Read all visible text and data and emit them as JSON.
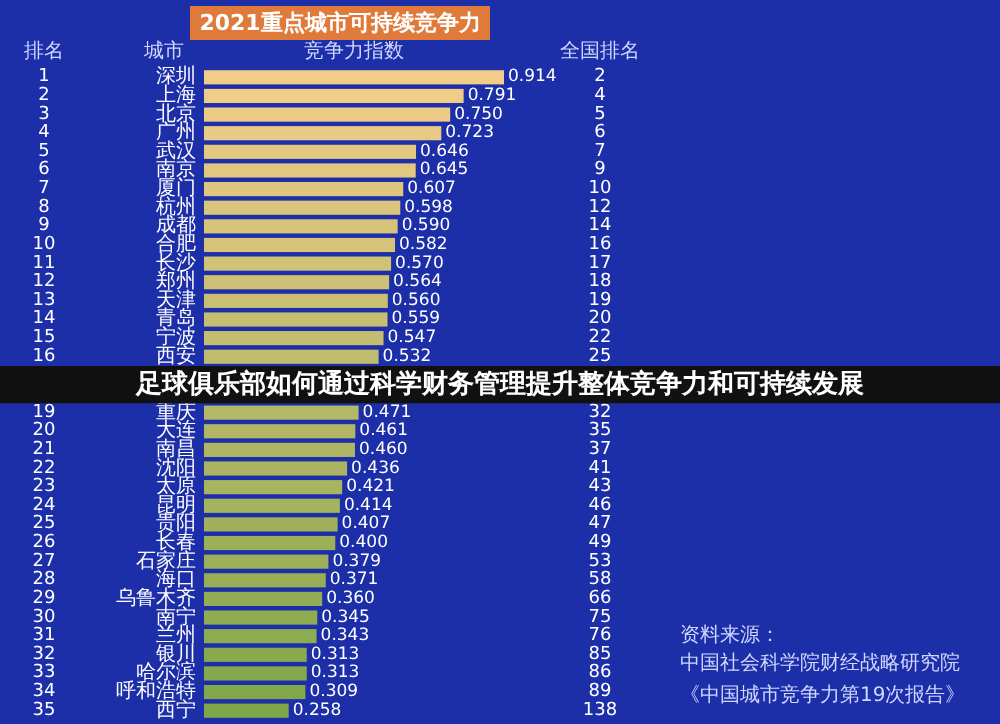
{
  "chart_data": {
    "type": "bar",
    "orientation": "horizontal",
    "title": "2021重点城市可持续竞争力",
    "categories": [
      "深圳",
      "上海",
      "北京",
      "广州",
      "武汉",
      "南京",
      "厦门",
      "杭州",
      "成都",
      "合肥",
      "长沙",
      "郑州",
      "天津",
      "青岛",
      "宁波",
      "西安",
      null,
      null,
      "重庆",
      "大连",
      "南昌",
      "沈阳",
      "太原",
      "昆明",
      "贵阳",
      "长春",
      "石家庄",
      "海口",
      "乌鲁木齐",
      "南宁",
      "兰州",
      "银川",
      "哈尔滨",
      "呼和浩特",
      "西宁"
    ],
    "values": [
      0.914,
      0.791,
      0.75,
      0.723,
      0.646,
      0.645,
      0.607,
      0.598,
      0.59,
      0.582,
      0.57,
      0.564,
      0.56,
      0.559,
      0.547,
      0.532,
      null,
      null,
      0.471,
      0.461,
      0.46,
      0.436,
      0.421,
      0.414,
      0.407,
      0.4,
      0.379,
      0.371,
      0.36,
      0.345,
      0.343,
      0.313,
      0.313,
      0.309,
      0.258
    ],
    "value_labels": [
      "0.914",
      "0.791",
      "0.750",
      "0.723",
      "0.646",
      "0.645",
      "0.607",
      "0.598",
      "0.590",
      "0.582",
      "0.570",
      "0.564",
      "0.560",
      "0.559",
      "0.547",
      "0.532",
      null,
      null,
      "0.471",
      "0.461",
      "0.460",
      "0.436",
      "0.421",
      "0.414",
      "0.407",
      "0.400",
      "0.379",
      "0.371",
      "0.360",
      "0.345",
      "0.343",
      "0.313",
      "0.313",
      "0.309",
      "0.258"
    ],
    "colors": [
      "#f2cd8a",
      "#efcc88",
      "#ebcb86",
      "#e8ca84",
      "#e4c882",
      "#e1c780",
      "#dec67e",
      "#dac57c",
      "#d7c47a",
      "#d4c379",
      "#d0c277",
      "#cdc075",
      "#c9bf73",
      "#c6be71",
      "#c3bd6f",
      "#bfbc6d",
      "#bcbb6b",
      "#b8b969",
      "#b5b867",
      "#b2b765",
      "#aeb663",
      "#abb561",
      "#a8b45f",
      "#a4b35d",
      "#a1b15b",
      "#9db059",
      "#9aaf58",
      "#97ae56",
      "#93ad54",
      "#90ac52",
      "#8dab50",
      "#89a94e",
      "#86a84c",
      "#82a74a",
      "#7fa648"
    ],
    "annotations": [
      "足球俱乐部如何通过科学财务管理提升整体竞争力和可持续发展",
      "排名",
      "城市",
      "竞争力指数",
      "全国排名",
      "资料来源：中国社会科学院财经战略研究院",
      "《中国城市竞争力第19次报告》",
      "1",
      "2",
      "2",
      "4",
      "3",
      "5",
      "4",
      "6",
      "5",
      "7",
      "6",
      "9",
      "7",
      "10",
      "8",
      "12",
      "9",
      "14",
      "10",
      "16",
      "11",
      "17",
      "12",
      "18",
      "13",
      "19",
      "14",
      "20",
      "15",
      "22",
      "16",
      "25",
      "19",
      "32",
      "20",
      "35",
      "21",
      "37",
      "22",
      "41",
      "23",
      "43",
      "24",
      "46",
      "25",
      "47",
      "26",
      "49",
      "27",
      "53",
      "28",
      "58",
      "29",
      "66",
      "30",
      "75",
      "31",
      "76",
      "32",
      "85",
      "33",
      "86",
      "34",
      "89",
      "35",
      "138"
    ]
  }
}
